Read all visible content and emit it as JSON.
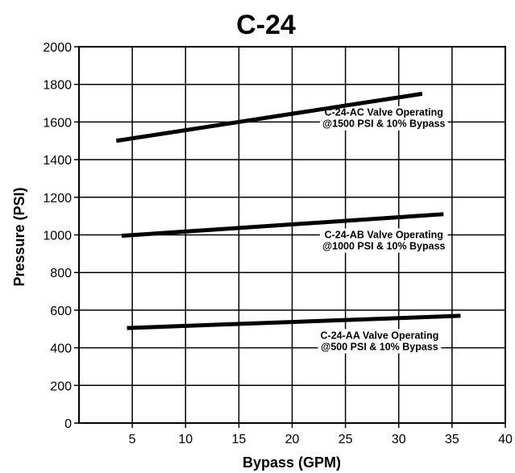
{
  "chart_data": {
    "type": "line",
    "title": "C-24",
    "xlabel": "Bypass (GPM)",
    "ylabel": "Pressure (PSI)",
    "xlim": [
      0,
      40
    ],
    "ylim": [
      0,
      2000
    ],
    "xticks": [
      5,
      10,
      15,
      20,
      25,
      30,
      35,
      40
    ],
    "yticks": [
      0,
      200,
      400,
      600,
      800,
      1000,
      1200,
      1400,
      1600,
      1800,
      2000
    ],
    "grid": true,
    "series": [
      {
        "x": [
          3.5,
          32.2
        ],
        "y": [
          1500,
          1750
        ]
      },
      {
        "x": [
          4.0,
          34.2
        ],
        "y": [
          995,
          1110
        ]
      },
      {
        "x": [
          4.5,
          35.8
        ],
        "y": [
          505,
          570
        ]
      }
    ],
    "annotations": [
      {
        "lines": [
          "C-24-AC Valve Operating",
          "@1500 PSI & 10% Bypass"
        ],
        "x": 28.6,
        "y": 1620
      },
      {
        "lines": [
          "C-24-AB Valve Operating",
          "@1000 PSI & 10% Bypass"
        ],
        "x": 28.6,
        "y": 970
      },
      {
        "lines": [
          "C-24-AA Valve Operating",
          "@500 PSI & 10% Bypass"
        ],
        "x": 28.2,
        "y": 435
      }
    ]
  }
}
